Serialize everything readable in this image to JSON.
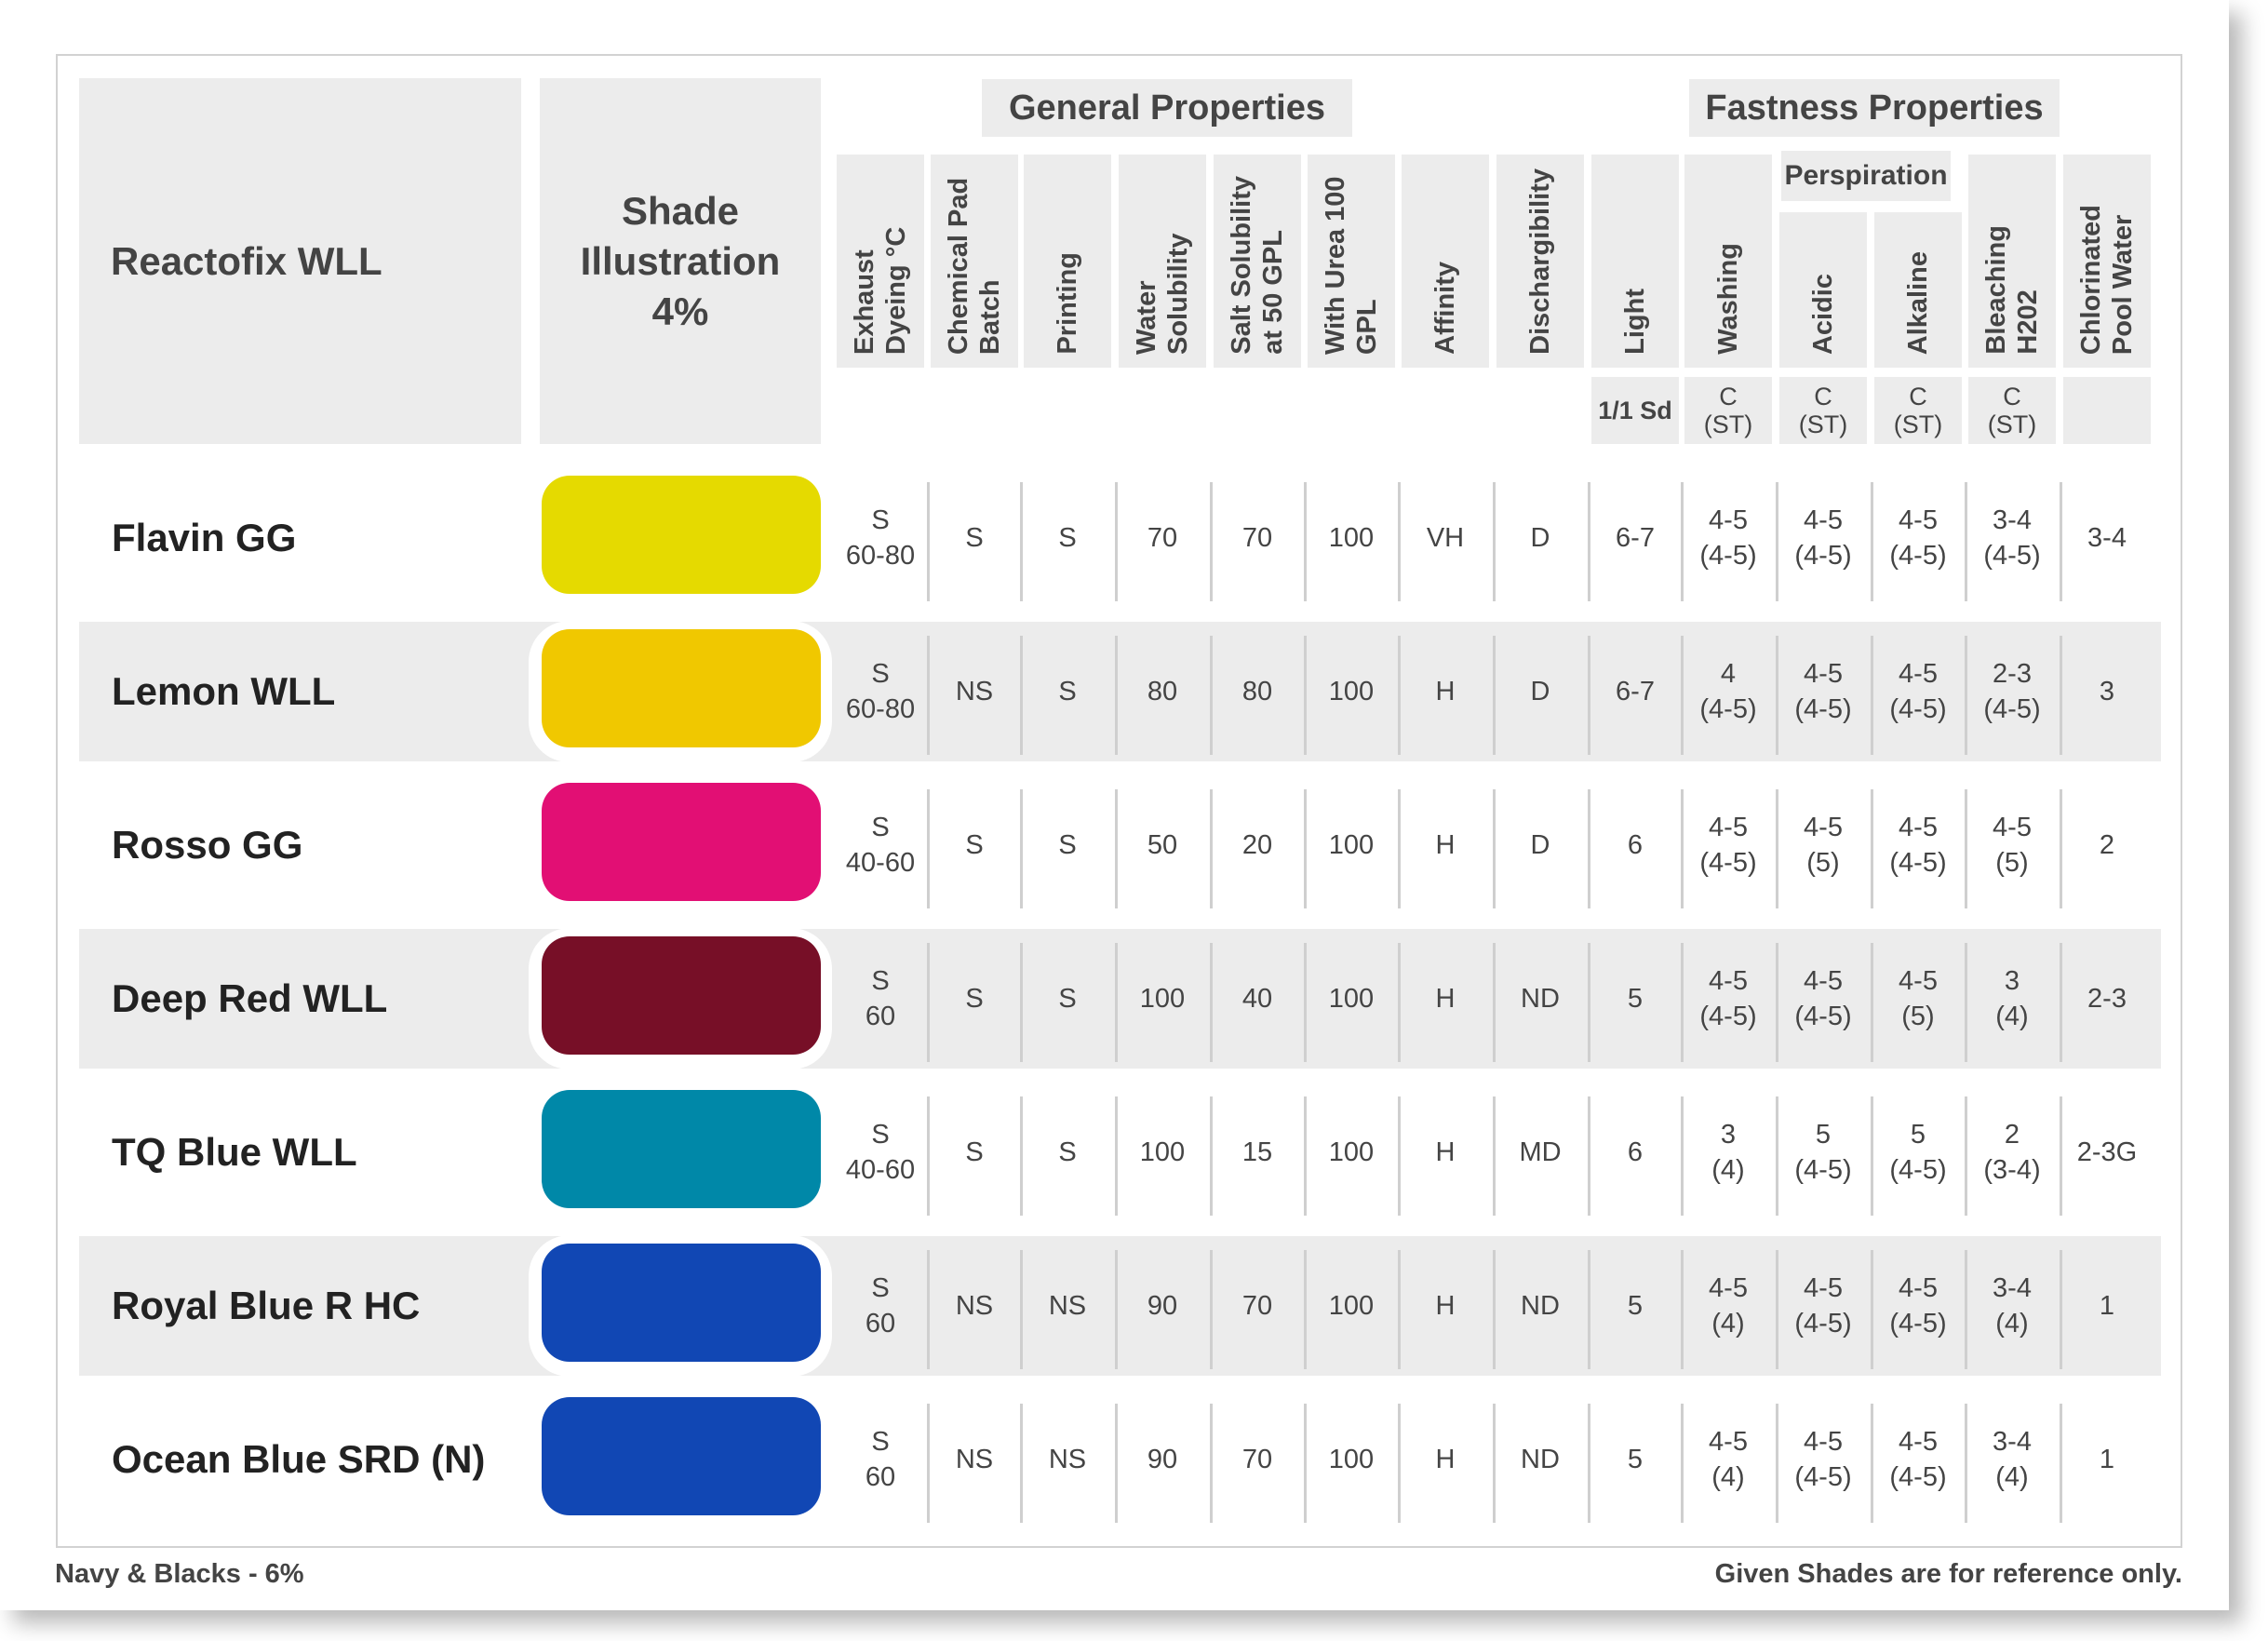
{
  "title": "Reactofix WLL",
  "shade_header": [
    "Shade",
    "Illustration",
    "4%"
  ],
  "group_general": "General Properties",
  "group_fastness": "Fastness Properties",
  "perspiration_label": "Perspiration",
  "columns": [
    {
      "label": "Exhaust Dyeing °C",
      "unit": ""
    },
    {
      "label": "Chemical Pad Batch",
      "unit": ""
    },
    {
      "label": "Printing",
      "unit": ""
    },
    {
      "label": "Water Solubility",
      "unit": ""
    },
    {
      "label": "Salt Solubility\nat 50 GPL",
      "unit": ""
    },
    {
      "label": "With Urea 100 GPL",
      "unit": ""
    },
    {
      "label": "Affinity",
      "unit": ""
    },
    {
      "label": "Dischargibility",
      "unit": ""
    },
    {
      "label": "Light",
      "unit": "1/1 Sd"
    },
    {
      "label": "Washing",
      "unit": "C\n(ST)"
    },
    {
      "label": "Acidic",
      "unit": "C\n(ST)"
    },
    {
      "label": "Alkaline",
      "unit": "C\n(ST)"
    },
    {
      "label": "Bleaching\nH202",
      "unit": "C\n(ST)"
    },
    {
      "label": "Chlorinated\nPool Water",
      "unit": ""
    }
  ],
  "rows": [
    {
      "name": "Flavin GG",
      "color": "#e5da00",
      "values": [
        "S\n60-80",
        "S",
        "S",
        "70",
        "70",
        "100",
        "VH",
        "D",
        "6-7",
        "4-5\n(4-5)",
        "4-5\n(4-5)",
        "4-5\n(4-5)",
        "3-4\n(4-5)",
        "3-4"
      ]
    },
    {
      "name": "Lemon WLL",
      "color": "#f0c800",
      "values": [
        "S\n60-80",
        "NS",
        "S",
        "80",
        "80",
        "100",
        "H",
        "D",
        "6-7",
        "4\n(4-5)",
        "4-5\n(4-5)",
        "4-5\n(4-5)",
        "2-3\n(4-5)",
        "3"
      ]
    },
    {
      "name": "Rosso GG",
      "color": "#e20f74",
      "values": [
        "S\n40-60",
        "S",
        "S",
        "50",
        "20",
        "100",
        "H",
        "D",
        "6",
        "4-5\n(4-5)",
        "4-5\n(5)",
        "4-5\n(4-5)",
        "4-5\n(5)",
        "2"
      ]
    },
    {
      "name": "Deep Red WLL",
      "color": "#770f27",
      "values": [
        "S\n60",
        "S",
        "S",
        "100",
        "40",
        "100",
        "H",
        "ND",
        "5",
        "4-5\n(4-5)",
        "4-5\n(4-5)",
        "4-5\n(5)",
        "3\n(4)",
        "2-3"
      ]
    },
    {
      "name": "TQ Blue WLL",
      "color": "#0088a8",
      "values": [
        "S\n40-60",
        "S",
        "S",
        "100",
        "15",
        "100",
        "H",
        "MD",
        "6",
        "3\n(4)",
        "5\n(4-5)",
        "5\n(4-5)",
        "2\n(3-4)",
        "2-3G"
      ]
    },
    {
      "name": "Royal Blue R HC",
      "color": "#1147b4",
      "values": [
        "S\n60",
        "NS",
        "NS",
        "90",
        "70",
        "100",
        "H",
        "ND",
        "5",
        "4-5\n(4)",
        "4-5\n(4-5)",
        "4-5\n(4-5)",
        "3-4\n(4)",
        "1"
      ]
    },
    {
      "name": "Ocean Blue SRD (N)",
      "color": "#1147b4",
      "values": [
        "S\n60",
        "NS",
        "NS",
        "90",
        "70",
        "100",
        "H",
        "ND",
        "5",
        "4-5\n(4)",
        "4-5\n(4-5)",
        "4-5\n(4-5)",
        "3-4\n(4)",
        "1"
      ]
    }
  ],
  "footer_left": "Navy & Blacks - 6%",
  "footer_right": "Given Shades are for reference only."
}
